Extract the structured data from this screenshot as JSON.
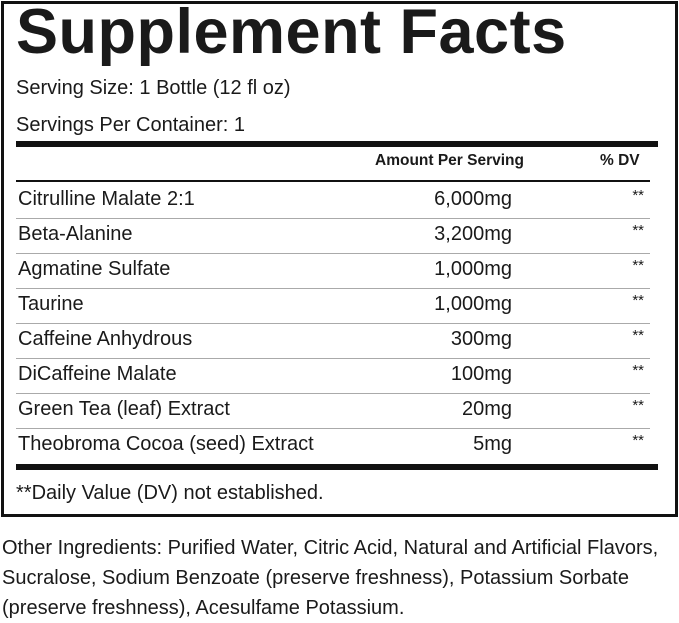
{
  "title": "Supplement Facts",
  "serving_size": "Serving Size: 1 Bottle (12 fl oz)",
  "servings_per_container": "Servings Per Container: 1",
  "headers": {
    "amount": "Amount Per Serving",
    "dv": "% DV"
  },
  "rows": [
    {
      "name": "Citrulline Malate 2:1",
      "amount": "6,000mg",
      "dv": "**"
    },
    {
      "name": "Beta-Alanine",
      "amount": "3,200mg",
      "dv": "**"
    },
    {
      "name": "Agmatine Sulfate",
      "amount": "1,000mg",
      "dv": "**"
    },
    {
      "name": "Taurine",
      "amount": "1,000mg",
      "dv": "**"
    },
    {
      "name": "Caffeine Anhydrous",
      "amount": "300mg",
      "dv": "**"
    },
    {
      "name": "DiCaffeine Malate",
      "amount": "100mg",
      "dv": "**"
    },
    {
      "name": "Green Tea (leaf) Extract",
      "amount": "20mg",
      "dv": "**"
    },
    {
      "name": "Theobroma Cocoa (seed) Extract",
      "amount": "5mg",
      "dv": "**"
    }
  ],
  "footnote": "**Daily Value (DV) not established.",
  "other_ingredients": "Other Ingredients: Purified Water, Citric Acid, Natural and Artificial Flavors, Sucralose, Sodium Benzoate (preserve freshness), Potassium Sorbate (preserve freshness), Acesulfame Potassium."
}
